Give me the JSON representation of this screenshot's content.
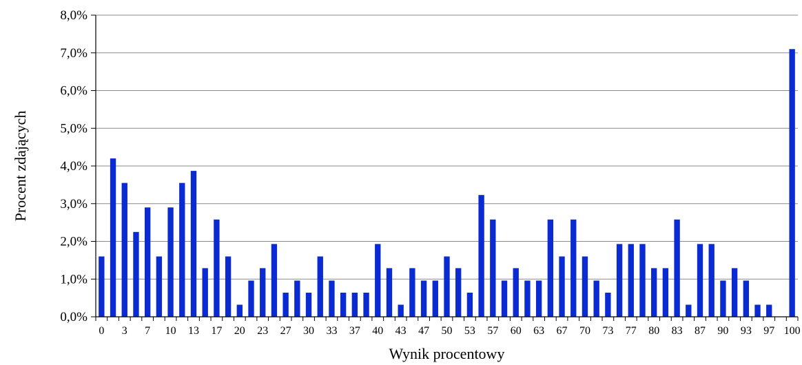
{
  "chart_data": {
    "type": "bar",
    "title": "",
    "xlabel": "Wynik procentowy",
    "ylabel": "Procent zdających",
    "ylim": [
      0,
      8
    ],
    "y_ticks": [
      "0,0%",
      "1,0%",
      "2,0%",
      "3,0%",
      "4,0%",
      "5,0%",
      "6,0%",
      "7,0%",
      "8,0%"
    ],
    "grid": true,
    "bar_color": "#0a2bd1",
    "categories": [
      0,
      2,
      3,
      5,
      7,
      8,
      10,
      12,
      13,
      15,
      17,
      18,
      20,
      22,
      23,
      25,
      27,
      28,
      30,
      32,
      33,
      35,
      37,
      38,
      40,
      42,
      43,
      45,
      47,
      48,
      50,
      52,
      53,
      55,
      57,
      58,
      60,
      62,
      63,
      65,
      67,
      68,
      70,
      72,
      73,
      75,
      77,
      78,
      80,
      82,
      83,
      85,
      87,
      88,
      90,
      92,
      93,
      95,
      97,
      98,
      100
    ],
    "tick_labels": [
      {
        "category": 0,
        "label": "0"
      },
      {
        "category": 3,
        "label": "3"
      },
      {
        "category": 7,
        "label": "7"
      },
      {
        "category": 10,
        "label": "10"
      },
      {
        "category": 13,
        "label": "13"
      },
      {
        "category": 17,
        "label": "17"
      },
      {
        "category": 20,
        "label": "20"
      },
      {
        "category": 23,
        "label": "23"
      },
      {
        "category": 27,
        "label": "27"
      },
      {
        "category": 30,
        "label": "30"
      },
      {
        "category": 33,
        "label": "33"
      },
      {
        "category": 37,
        "label": "37"
      },
      {
        "category": 40,
        "label": "40"
      },
      {
        "category": 43,
        "label": "43"
      },
      {
        "category": 47,
        "label": "47"
      },
      {
        "category": 50,
        "label": "50"
      },
      {
        "category": 53,
        "label": "53"
      },
      {
        "category": 57,
        "label": "57"
      },
      {
        "category": 60,
        "label": "60"
      },
      {
        "category": 63,
        "label": "63"
      },
      {
        "category": 67,
        "label": "67"
      },
      {
        "category": 70,
        "label": "70"
      },
      {
        "category": 73,
        "label": "73"
      },
      {
        "category": 77,
        "label": "77"
      },
      {
        "category": 80,
        "label": "80"
      },
      {
        "category": 83,
        "label": "83"
      },
      {
        "category": 87,
        "label": "87"
      },
      {
        "category": 90,
        "label": "90"
      },
      {
        "category": 93,
        "label": "93"
      },
      {
        "category": 97,
        "label": "97"
      },
      {
        "category": 100,
        "label": "100"
      }
    ],
    "values": [
      1.6,
      4.2,
      3.55,
      2.25,
      2.9,
      1.6,
      2.9,
      3.55,
      3.87,
      1.29,
      2.58,
      1.6,
      0.32,
      0.96,
      1.29,
      1.93,
      0.64,
      0.96,
      0.64,
      1.6,
      0.96,
      0.64,
      0.64,
      0.64,
      1.93,
      1.29,
      0.32,
      1.29,
      0.96,
      0.96,
      1.6,
      1.29,
      0.64,
      3.23,
      2.58,
      0.96,
      1.29,
      0.96,
      0.96,
      2.58,
      1.6,
      2.58,
      1.6,
      0.96,
      0.64,
      1.93,
      1.93,
      1.93,
      1.29,
      1.29,
      2.58,
      0.32,
      1.93,
      1.93,
      0.96,
      1.29,
      0.96,
      0.32,
      0.32,
      0,
      7.1
    ]
  }
}
